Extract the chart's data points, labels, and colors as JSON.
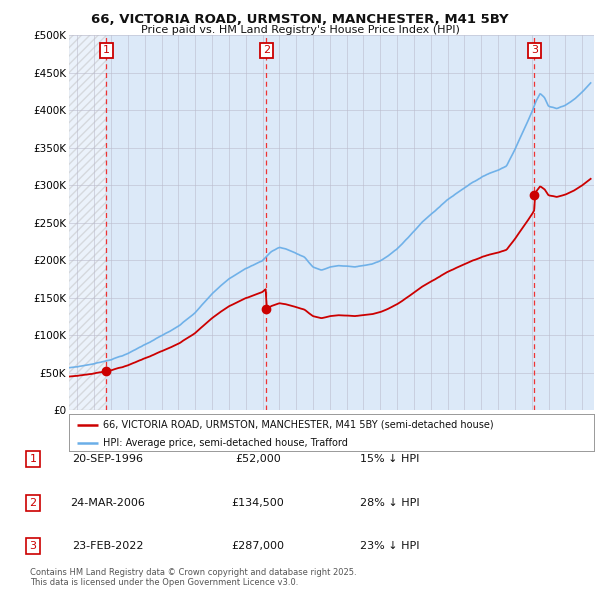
{
  "title": "66, VICTORIA ROAD, URMSTON, MANCHESTER, M41 5BY",
  "subtitle": "Price paid vs. HM Land Registry's House Price Index (HPI)",
  "property_label": "66, VICTORIA ROAD, URMSTON, MANCHESTER, M41 5BY (semi-detached house)",
  "hpi_label": "HPI: Average price, semi-detached house, Trafford",
  "sale_info": [
    [
      "1",
      "20-SEP-1996",
      "£52,000",
      "15% ↓ HPI"
    ],
    [
      "2",
      "24-MAR-2006",
      "£134,500",
      "28% ↓ HPI"
    ],
    [
      "3",
      "23-FEB-2022",
      "£287,000",
      "23% ↓ HPI"
    ]
  ],
  "sale_date_nums": [
    1996.72,
    2006.23,
    2022.15
  ],
  "sale_prices": [
    52000,
    134500,
    287000
  ],
  "footer": "Contains HM Land Registry data © Crown copyright and database right 2025.\nThis data is licensed under the Open Government Licence v3.0.",
  "background_color": "#ffffff",
  "plot_bg_color": "#dce9f8",
  "hpi_color": "#6aaee8",
  "sale_color": "#cc0000",
  "dashed_color": "#ee3333",
  "ylim": [
    0,
    500000
  ],
  "ytick_vals": [
    0,
    50000,
    100000,
    150000,
    200000,
    250000,
    300000,
    350000,
    400000,
    450000,
    500000
  ],
  "ytick_labels": [
    "£0",
    "£50K",
    "£100K",
    "£150K",
    "£200K",
    "£250K",
    "£300K",
    "£350K",
    "£400K",
    "£450K",
    "£500K"
  ],
  "xlim_start": 1994.5,
  "xlim_end": 2025.7,
  "hpi_key_years": [
    1994,
    1995,
    1996,
    1997,
    1998,
    1999,
    2000,
    2001,
    2002,
    2003,
    2004,
    2005,
    2006,
    2006.5,
    2007,
    2007.5,
    2008,
    2008.5,
    2009,
    2009.5,
    2010,
    2010.5,
    2011,
    2011.5,
    2012,
    2012.5,
    2013,
    2013.5,
    2014,
    2014.5,
    2015,
    2015.5,
    2016,
    2016.5,
    2017,
    2017.5,
    2018,
    2018.5,
    2019,
    2019.5,
    2020,
    2020.5,
    2021,
    2021.5,
    2022,
    2022.25,
    2022.5,
    2022.75,
    2023,
    2023.5,
    2024,
    2024.5,
    2025,
    2025.5
  ],
  "hpi_key_vals": [
    55000,
    58000,
    62000,
    68000,
    76000,
    88000,
    100000,
    112000,
    130000,
    155000,
    175000,
    190000,
    200000,
    212000,
    218000,
    215000,
    210000,
    205000,
    192000,
    188000,
    192000,
    194000,
    193000,
    192000,
    194000,
    196000,
    200000,
    207000,
    216000,
    228000,
    240000,
    252000,
    262000,
    272000,
    282000,
    290000,
    298000,
    306000,
    312000,
    318000,
    322000,
    328000,
    350000,
    375000,
    400000,
    415000,
    425000,
    420000,
    408000,
    405000,
    410000,
    418000,
    428000,
    440000
  ]
}
